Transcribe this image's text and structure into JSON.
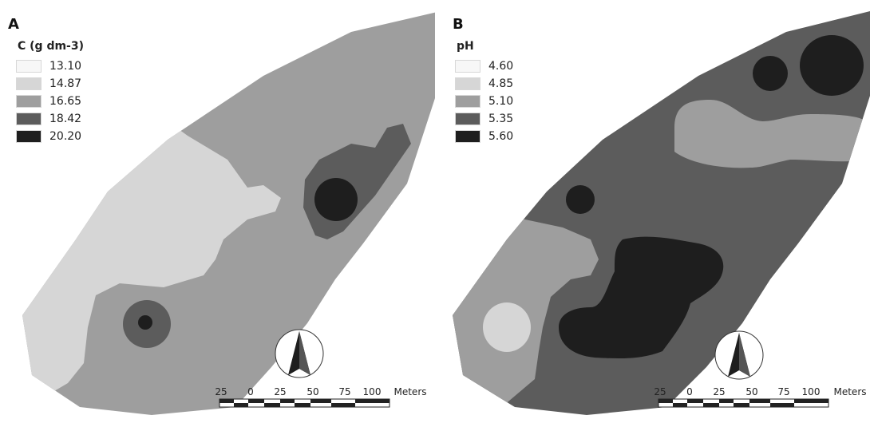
{
  "panels": [
    {
      "letter": "A",
      "legend": {
        "title": "C (g dm-3)",
        "items": [
          {
            "label": "13.10",
            "color": "#f7f7f7"
          },
          {
            "label": "14.87",
            "color": "#d6d6d6"
          },
          {
            "label": "16.65",
            "color": "#9e9e9e"
          },
          {
            "label": "18.42",
            "color": "#5c5c5c"
          },
          {
            "label": "20.20",
            "color": "#1e1e1e"
          }
        ]
      },
      "scale_bar": {
        "ticks": [
          "25",
          "0",
          "25",
          "50",
          "75",
          "100"
        ],
        "unit": "Meters"
      },
      "north_arrow_icon": "north-arrow-icon"
    },
    {
      "letter": "B",
      "legend": {
        "title": "pH",
        "items": [
          {
            "label": "4.60",
            "color": "#f7f7f7"
          },
          {
            "label": "4.85",
            "color": "#d6d6d6"
          },
          {
            "label": "5.10",
            "color": "#9e9e9e"
          },
          {
            "label": "5.35",
            "color": "#5c5c5c"
          },
          {
            "label": "5.60",
            "color": "#1e1e1e"
          }
        ]
      },
      "scale_bar": {
        "ticks": [
          "25",
          "0",
          "25",
          "50",
          "75",
          "100"
        ],
        "unit": "Meters"
      },
      "north_arrow_icon": "north-arrow-icon"
    }
  ]
}
